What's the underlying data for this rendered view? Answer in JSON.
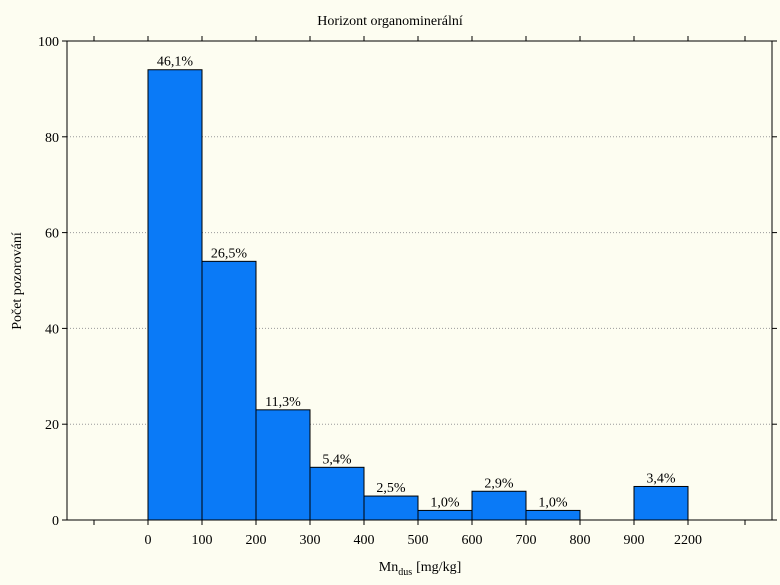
{
  "chart_data": {
    "type": "bar",
    "title": "Horizont organominerální",
    "xlabel_main": "Mn",
    "xlabel_sub": "dus",
    "xlabel_unit": "[mg/kg]",
    "ylabel": "Počet pozorování",
    "ylim": [
      0,
      100
    ],
    "yticks": [
      "0",
      "20",
      "40",
      "60",
      "80",
      "100"
    ],
    "xticks": [
      "0",
      "100",
      "200",
      "300",
      "400",
      "500",
      "600",
      "700",
      "800",
      "900",
      "2200"
    ],
    "bins": [
      {
        "from": "0",
        "to": "100",
        "value": 94,
        "label": "46,1%"
      },
      {
        "from": "100",
        "to": "200",
        "value": 54,
        "label": "26,5%"
      },
      {
        "from": "200",
        "to": "300",
        "value": 23,
        "label": "11,3%"
      },
      {
        "from": "300",
        "to": "400",
        "value": 11,
        "label": "5,4%"
      },
      {
        "from": "400",
        "to": "500",
        "value": 5,
        "label": "2,5%"
      },
      {
        "from": "500",
        "to": "600",
        "value": 2,
        "label": "1,0%"
      },
      {
        "from": "600",
        "to": "700",
        "value": 6,
        "label": "2,9%"
      },
      {
        "from": "700",
        "to": "800",
        "value": 2,
        "label": "1,0%"
      },
      {
        "from": "800",
        "to": "900",
        "value": 0,
        "label": ""
      },
      {
        "from": "900",
        "to": "2200",
        "value": 7,
        "label": "3,4%"
      }
    ],
    "grid": true,
    "bar_color": "#0a7af7",
    "background": "#fdfdf1"
  }
}
